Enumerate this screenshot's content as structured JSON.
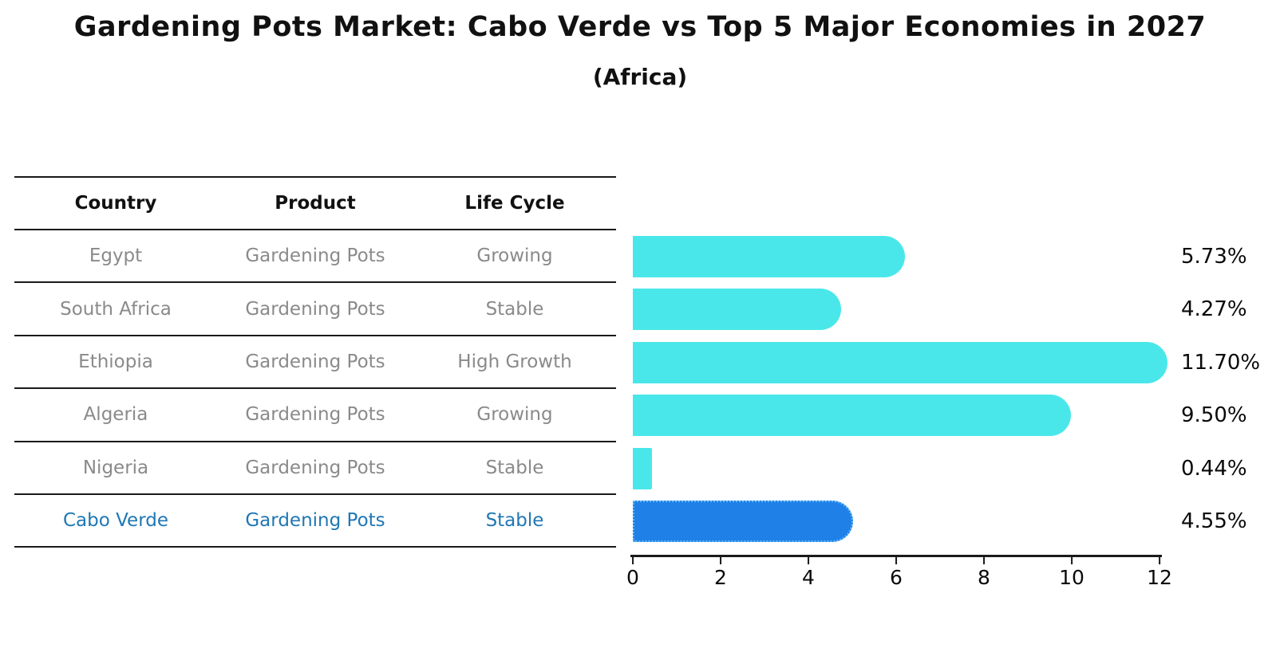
{
  "title": "Gardening Pots Market: Cabo Verde vs Top 5 Major Economies in 2027",
  "subtitle": "(Africa)",
  "table": {
    "headers": [
      "Country",
      "Product",
      "Life Cycle"
    ],
    "rows": [
      {
        "country": "Egypt",
        "product": "Gardening Pots",
        "life_cycle": "Growing",
        "highlight": false
      },
      {
        "country": "South Africa",
        "product": "Gardening Pots",
        "life_cycle": "Stable",
        "highlight": false
      },
      {
        "country": "Ethiopia",
        "product": "Gardening Pots",
        "life_cycle": "High Growth",
        "highlight": false
      },
      {
        "country": "Algeria",
        "product": "Gardening Pots",
        "life_cycle": "Growing",
        "highlight": false
      },
      {
        "country": "Nigeria",
        "product": "Gardening Pots",
        "life_cycle": "Stable",
        "highlight": false
      },
      {
        "country": "Cabo Verde",
        "product": "Gardening Pots",
        "life_cycle": "Stable",
        "highlight": true
      }
    ]
  },
  "chart_data": {
    "type": "bar",
    "orientation": "horizontal",
    "title": "Gardening Pots Market: Cabo Verde vs Top 5 Major Economies in 2027",
    "subtitle": "(Africa)",
    "categories": [
      "Egypt",
      "South Africa",
      "Ethiopia",
      "Algeria",
      "Nigeria",
      "Cabo Verde"
    ],
    "values": [
      5.73,
      4.27,
      11.7,
      9.5,
      0.44,
      4.55
    ],
    "value_labels": [
      "5.73%",
      "4.27%",
      "11.70%",
      "9.50%",
      "0.44%",
      "4.55%"
    ],
    "xlabel": "",
    "ylabel": "",
    "xlim": [
      0,
      12
    ],
    "x_ticks": [
      0,
      2,
      4,
      6,
      8,
      10,
      12
    ],
    "grid": false,
    "legend": false,
    "highlight_index": 5
  },
  "colors": {
    "bar": "#4AE7EA",
    "highlight_bar": "#1F80E8",
    "highlight_border": "#63B9F7",
    "highlight_text": "#1F77B4",
    "text_muted": "#8A8A8A",
    "line": "#1A1A1A"
  }
}
